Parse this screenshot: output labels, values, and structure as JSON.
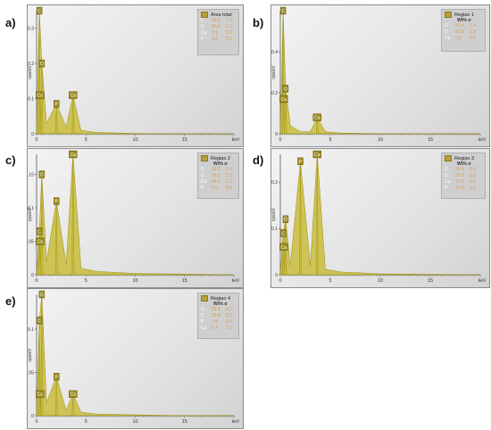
{
  "colors": {
    "spectrum_fill": "#c9bc3c",
    "spectrum_stroke": "#9c8f10",
    "peak_label_bg": "#9a8a20",
    "axis": "#444444"
  },
  "panels": [
    {
      "letter": "a)",
      "legend_title": "Area total",
      "legend_header": "",
      "legend_rows": [
        {
          "el": "C",
          "wt": "46.0",
          "sigma": "1.2"
        },
        {
          "el": "O",
          "wt": "40.6",
          "sigma": "1.2"
        },
        {
          "el": "Ca",
          "wt": "9.1",
          "sigma": "0.2"
        },
        {
          "el": "P",
          "wt": "3.6",
          "sigma": "0.1"
        }
      ]
    },
    {
      "letter": "b)",
      "legend_title": "Regiao 1",
      "legend_header": "Wt%   σ",
      "legend_rows": [
        {
          "el": "C",
          "wt": "53.4",
          "sigma": "1.4"
        },
        {
          "el": "O",
          "wt": "40.8",
          "sigma": "1.3"
        },
        {
          "el": "Ca",
          "wt": "5.8",
          "sigma": "0.2"
        }
      ]
    },
    {
      "letter": "c)",
      "legend_title": "Regiao 2",
      "legend_header": "Wt%   σ",
      "legend_rows": [
        {
          "el": "O",
          "wt": "38.3",
          "sigma": "2.4"
        },
        {
          "el": "C",
          "wt": "28.2",
          "sigma": "2.2"
        },
        {
          "el": "Ca",
          "wt": "24.9",
          "sigma": "1.2"
        },
        {
          "el": "P",
          "wt": "8.6",
          "sigma": "0.5"
        }
      ]
    },
    {
      "letter": "d)",
      "legend_title": "Regiao 3",
      "legend_header": "Wt%   σ",
      "legend_rows": [
        {
          "el": "O",
          "wt": "36.6",
          "sigma": "2.4"
        },
        {
          "el": "C",
          "wt": "29.8",
          "sigma": "2.2"
        },
        {
          "el": "Ca",
          "wt": "17.9",
          "sigma": "0.8"
        },
        {
          "el": "P",
          "wt": "15.6",
          "sigma": "0.6"
        }
      ]
    },
    {
      "letter": "e)",
      "legend_title": "Regiao 4",
      "legend_header": "Wt%   σ",
      "legend_rows": [
        {
          "el": "O",
          "wt": "56.8",
          "sigma": "4.2"
        },
        {
          "el": "C",
          "wt": "29.8",
          "sigma": "3.2"
        },
        {
          "el": "P",
          "wt": "7.8",
          "sigma": "0.6"
        },
        {
          "el": "Ca",
          "wt": "5.7",
          "sigma": "0.3"
        }
      ]
    }
  ],
  "chart_data": [
    {
      "type": "area",
      "panel": "a)",
      "xlabel": "keV",
      "ylabel": "cps/eV",
      "xlim": [
        0,
        20
      ],
      "ylim": [
        0,
        0.35
      ],
      "xticks": [
        "0",
        "5",
        "10",
        "15"
      ],
      "yticks": [
        "0",
        "0.1",
        "0.2",
        "0.3"
      ],
      "peaks": [
        {
          "label": "C",
          "x": 0.28,
          "y": 0.35
        },
        {
          "label": "O",
          "x": 0.53,
          "y": 0.2
        },
        {
          "label": "Ca",
          "x": 0.34,
          "y": 0.11
        },
        {
          "label": "P",
          "x": 2.01,
          "y": 0.085
        },
        {
          "label": "Ca",
          "x": 3.69,
          "y": 0.11
        }
      ],
      "series": [
        {
          "name": "Area total",
          "x": [
            0,
            0.28,
            0.53,
            1,
            2.01,
            3,
            3.69,
            4.5,
            6,
            10,
            15,
            20
          ],
          "values": [
            0,
            0.35,
            0.2,
            0.03,
            0.085,
            0.02,
            0.11,
            0.01,
            0.004,
            0.001,
            0,
            0
          ]
        }
      ]
    },
    {
      "type": "area",
      "panel": "b)",
      "xlabel": "keV",
      "ylabel": "cps/eV",
      "xlim": [
        0,
        20
      ],
      "ylim": [
        0,
        0.6
      ],
      "xticks": [
        "0",
        "5",
        "10",
        "15"
      ],
      "yticks": [
        "0",
        "0.2",
        "0.4"
      ],
      "peaks": [
        {
          "label": "C",
          "x": 0.28,
          "y": 0.6
        },
        {
          "label": "O",
          "x": 0.53,
          "y": 0.22
        },
        {
          "label": "Ca",
          "x": 0.34,
          "y": 0.17
        },
        {
          "label": "Ca",
          "x": 3.69,
          "y": 0.08
        }
      ],
      "series": [
        {
          "name": "Regiao 1",
          "x": [
            0,
            0.28,
            0.53,
            1,
            2,
            3,
            3.69,
            4.5,
            6,
            10,
            15,
            20
          ],
          "values": [
            0,
            0.6,
            0.22,
            0.04,
            0.01,
            0.01,
            0.08,
            0.01,
            0.004,
            0.001,
            0,
            0
          ]
        }
      ]
    },
    {
      "type": "area",
      "panel": "c)",
      "xlabel": "keV",
      "ylabel": "cps/eV",
      "xlim": [
        0,
        20
      ],
      "ylim": [
        0,
        0.18
      ],
      "xticks": [
        "0",
        "5",
        "10",
        "15"
      ],
      "yticks": [
        "0",
        "0.05",
        "0.1",
        "0.15"
      ],
      "peaks": [
        {
          "label": "O",
          "x": 0.53,
          "y": 0.15
        },
        {
          "label": "C",
          "x": 0.28,
          "y": 0.065
        },
        {
          "label": "Ca",
          "x": 0.34,
          "y": 0.05
        },
        {
          "label": "P",
          "x": 2.01,
          "y": 0.11
        },
        {
          "label": "Ca",
          "x": 3.69,
          "y": 0.18
        }
      ],
      "series": [
        {
          "name": "Regiao 2",
          "x": [
            0,
            0.28,
            0.53,
            1,
            2.01,
            3,
            3.69,
            4.5,
            6,
            10,
            15,
            20
          ],
          "values": [
            0,
            0.065,
            0.15,
            0.02,
            0.11,
            0.015,
            0.18,
            0.01,
            0.005,
            0.002,
            0.001,
            0
          ]
        }
      ]
    },
    {
      "type": "area",
      "panel": "d)",
      "xlabel": "keV",
      "ylabel": "cps/eV",
      "xlim": [
        0,
        20
      ],
      "ylim": [
        0,
        0.26
      ],
      "xticks": [
        "0",
        "5",
        "10",
        "15"
      ],
      "yticks": [
        "0",
        "0.1",
        "0.2"
      ],
      "peaks": [
        {
          "label": "O",
          "x": 0.53,
          "y": 0.12
        },
        {
          "label": "C",
          "x": 0.28,
          "y": 0.09
        },
        {
          "label": "Ca",
          "x": 0.34,
          "y": 0.06
        },
        {
          "label": "P",
          "x": 2.01,
          "y": 0.245
        },
        {
          "label": "Ca",
          "x": 3.69,
          "y": 0.26
        }
      ],
      "series": [
        {
          "name": "Regiao 3",
          "x": [
            0,
            0.28,
            0.53,
            1,
            2.01,
            3,
            3.69,
            4.5,
            6,
            10,
            15,
            20
          ],
          "values": [
            0,
            0.09,
            0.12,
            0.02,
            0.245,
            0.02,
            0.26,
            0.012,
            0.006,
            0.002,
            0.001,
            0
          ]
        }
      ]
    },
    {
      "type": "area",
      "panel": "e)",
      "xlabel": "keV",
      "ylabel": "cps/eV",
      "xlim": [
        0,
        20
      ],
      "ylim": [
        0,
        0.14
      ],
      "xticks": [
        "0",
        "5",
        "10",
        "15"
      ],
      "yticks": [
        "0",
        "0.05",
        "0.1"
      ],
      "peaks": [
        {
          "label": "O",
          "x": 0.53,
          "y": 0.14
        },
        {
          "label": "C",
          "x": 0.28,
          "y": 0.11
        },
        {
          "label": "Ca",
          "x": 0.34,
          "y": 0.025
        },
        {
          "label": "P",
          "x": 2.01,
          "y": 0.045
        },
        {
          "label": "Ca",
          "x": 3.69,
          "y": 0.025
        }
      ],
      "series": [
        {
          "name": "Regiao 4",
          "x": [
            0,
            0.28,
            0.53,
            1,
            2.01,
            3,
            3.69,
            4.5,
            6,
            10,
            15,
            20
          ],
          "values": [
            0,
            0.11,
            0.14,
            0.015,
            0.045,
            0.006,
            0.025,
            0.004,
            0.002,
            0.001,
            0,
            0
          ]
        }
      ]
    }
  ]
}
